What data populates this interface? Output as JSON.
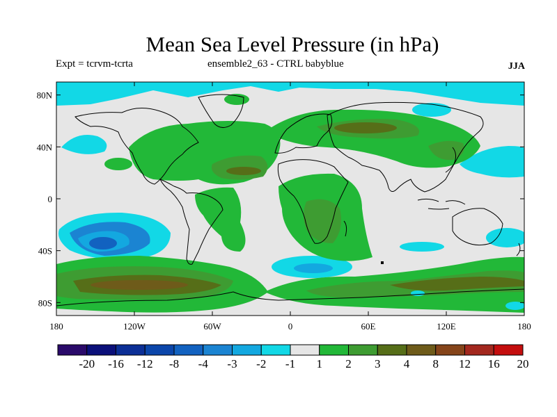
{
  "title": "Mean Sea Level Pressure (in hPa)",
  "subtitle_left": "Expt = tcrvm-tcrta",
  "subtitle_center": "ensemble2_63 - CTRL babyblue",
  "subtitle_right": "JJA",
  "lat_labels": [
    "80N",
    "40N",
    "0",
    "40S",
    "80S"
  ],
  "lon_labels": [
    "180",
    "120W",
    "60W",
    "0",
    "60E",
    "120E",
    "180"
  ],
  "colorbar": {
    "labels": [
      "-20",
      "-16",
      "-12",
      "-8",
      "-4",
      "-3",
      "-2",
      "-1",
      "1",
      "2",
      "3",
      "4",
      "8",
      "12",
      "16",
      "20"
    ],
    "colors": [
      "#2a0a6a",
      "#0b107a",
      "#0c2f96",
      "#0b46aa",
      "#1262c0",
      "#1b84d2",
      "#13a8e0",
      "#12d8e6",
      "#e6e6e6",
      "#22b838",
      "#3e9c32",
      "#566e18",
      "#6e5b1a",
      "#85441a",
      "#a3281e",
      "#c40e0e"
    ]
  },
  "colors": {
    "background_field": "#e6e6e6",
    "neg_1": "#12d8e6",
    "neg_2": "#13a8e0",
    "neg_3": "#1b84d2",
    "pos_1": "#22b838",
    "pos_2": "#3e9c32",
    "pos_3": "#566e18",
    "pos_4": "#6e5b1a",
    "coast": "#000000"
  }
}
